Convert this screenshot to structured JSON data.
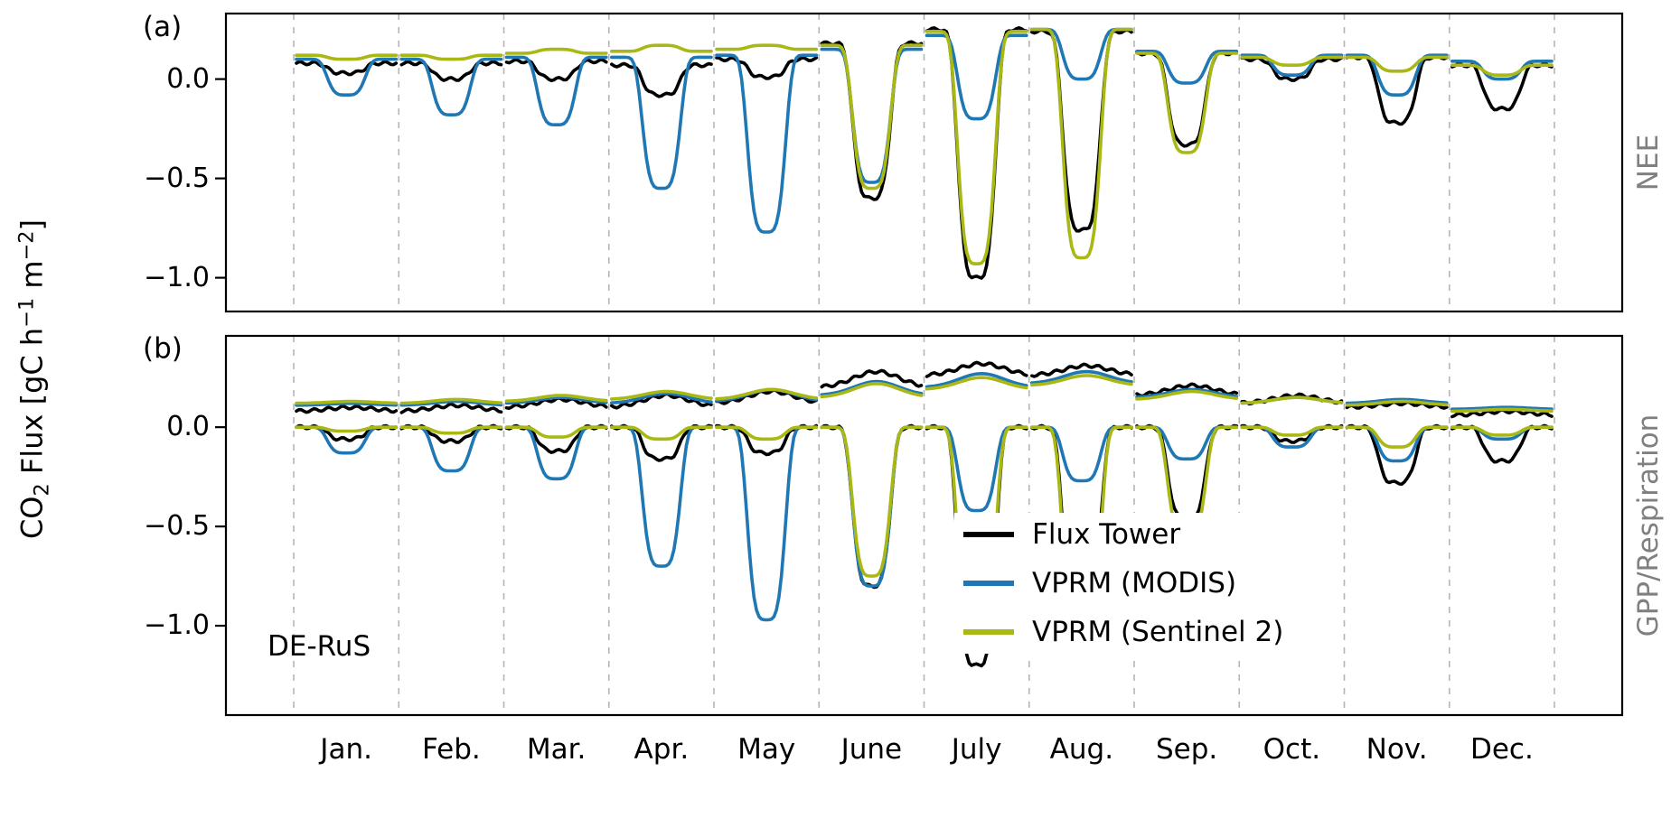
{
  "chart_data": {
    "type": "line",
    "description": "Mean diurnal cycles of CO2 flux per month at site DE-RuS; panel (a) NEE, panel (b) GPP and respiration; observed flux tower vs VPRM model driven by MODIS and Sentinel 2.",
    "site_label": "DE-RuS",
    "ylabel": "CO₂ Flux [gC h⁻¹ m⁻²]",
    "ylabel_parts": {
      "p1": "CO",
      "sub": "2",
      "p2": " Flux [gC h",
      "sup1": "−1",
      "p3": " m",
      "sup2": "−2",
      "p4": "]"
    },
    "months": [
      "Jan.",
      "Feb.",
      "Mar.",
      "Apr.",
      "May",
      "June",
      "July",
      "Aug.",
      "Sep.",
      "Oct.",
      "Nov.",
      "Dec."
    ],
    "grid": "vertical dashed lines at month boundaries",
    "legend": {
      "position": "lower right of panel b",
      "entries": [
        {
          "label": "Flux Tower",
          "color": "#000000"
        },
        {
          "label": "VPRM (MODIS)",
          "color": "#1f77b4"
        },
        {
          "label": "VPRM (Sentinel 2)",
          "color": "#aab816"
        }
      ]
    },
    "panels": [
      {
        "letter": "(a)",
        "right_label": "NEE",
        "ylim": [
          -1.17,
          0.33
        ],
        "yticks": [
          0.0,
          -0.5,
          -1.0
        ],
        "series": [
          {
            "name": "flux_tower",
            "label": "Flux Tower",
            "color": "#000000",
            "night": [
              0.08,
              0.08,
              0.09,
              0.07,
              0.1,
              0.18,
              0.25,
              0.24,
              0.13,
              0.1,
              0.11,
              0.07
            ],
            "midday": [
              0.03,
              0.0,
              0.0,
              -0.08,
              0.01,
              -0.6,
              -1.0,
              -0.76,
              -0.33,
              0.0,
              -0.22,
              -0.15
            ]
          },
          {
            "name": "modis",
            "label": "VPRM (MODIS)",
            "color": "#1f77b4",
            "night": [
              0.1,
              0.1,
              0.11,
              0.11,
              0.12,
              0.15,
              0.22,
              0.25,
              0.14,
              0.12,
              0.12,
              0.09
            ],
            "midday": [
              -0.08,
              -0.18,
              -0.23,
              -0.55,
              -0.77,
              -0.52,
              -0.2,
              0.0,
              -0.02,
              0.02,
              -0.08,
              0.0
            ]
          },
          {
            "name": "sentinel2",
            "label": "VPRM (Sentinel 2)",
            "color": "#aab816",
            "night": [
              0.12,
              0.12,
              0.13,
              0.14,
              0.15,
              0.17,
              0.24,
              0.25,
              0.13,
              0.11,
              0.11,
              0.07
            ],
            "midday": [
              0.1,
              0.1,
              0.15,
              0.17,
              0.17,
              -0.55,
              -0.93,
              -0.9,
              -0.37,
              0.07,
              0.04,
              0.02
            ]
          }
        ]
      },
      {
        "letter": "(b)",
        "right_label": "GPP/Respiration",
        "ylim": [
          -1.45,
          0.46
        ],
        "yticks": [
          0.0,
          -0.5,
          -1.0
        ],
        "respiration_series": [
          {
            "name": "flux_tower",
            "label": "Flux Tower",
            "color": "#000000",
            "night": [
              0.08,
              0.08,
              0.1,
              0.1,
              0.12,
              0.2,
              0.26,
              0.26,
              0.16,
              0.12,
              0.1,
              0.06
            ],
            "midday": [
              0.1,
              0.11,
              0.14,
              0.16,
              0.18,
              0.28,
              0.32,
              0.31,
              0.21,
              0.16,
              0.12,
              0.08
            ]
          },
          {
            "name": "modis",
            "label": "VPRM (MODIS)",
            "color": "#1f77b4",
            "night": [
              0.11,
              0.11,
              0.12,
              0.12,
              0.13,
              0.16,
              0.2,
              0.22,
              0.15,
              0.12,
              0.12,
              0.09
            ],
            "midday": [
              0.12,
              0.13,
              0.15,
              0.17,
              0.19,
              0.23,
              0.27,
              0.28,
              0.19,
              0.15,
              0.14,
              0.1
            ]
          },
          {
            "name": "sentinel2",
            "label": "VPRM (Sentinel 2)",
            "color": "#aab816",
            "night": [
              0.12,
              0.12,
              0.13,
              0.14,
              0.14,
              0.15,
              0.19,
              0.21,
              0.14,
              0.12,
              0.11,
              0.08
            ],
            "midday": [
              0.13,
              0.14,
              0.16,
              0.18,
              0.19,
              0.22,
              0.25,
              0.26,
              0.18,
              0.15,
              0.13,
              0.09
            ]
          }
        ],
        "gpp_series": [
          {
            "name": "flux_tower",
            "label": "Flux Tower",
            "color": "#000000",
            "night_value": 0,
            "midday": [
              -0.06,
              -0.07,
              -0.12,
              -0.16,
              -0.13,
              -0.8,
              -1.2,
              -0.95,
              -0.46,
              -0.07,
              -0.28,
              -0.17
            ]
          },
          {
            "name": "modis",
            "label": "VPRM (MODIS)",
            "color": "#1f77b4",
            "night_value": 0,
            "midday": [
              -0.13,
              -0.22,
              -0.26,
              -0.7,
              -0.97,
              -0.8,
              -0.42,
              -0.27,
              -0.16,
              -0.1,
              -0.17,
              -0.06
            ]
          },
          {
            "name": "sentinel2",
            "label": "VPRM (Sentinel 2)",
            "color": "#aab816",
            "night_value": 0,
            "midday": [
              -0.02,
              -0.03,
              -0.05,
              -0.06,
              -0.06,
              -0.75,
              -1.1,
              -1.1,
              -0.55,
              -0.04,
              -0.1,
              -0.04
            ]
          }
        ]
      }
    ]
  }
}
